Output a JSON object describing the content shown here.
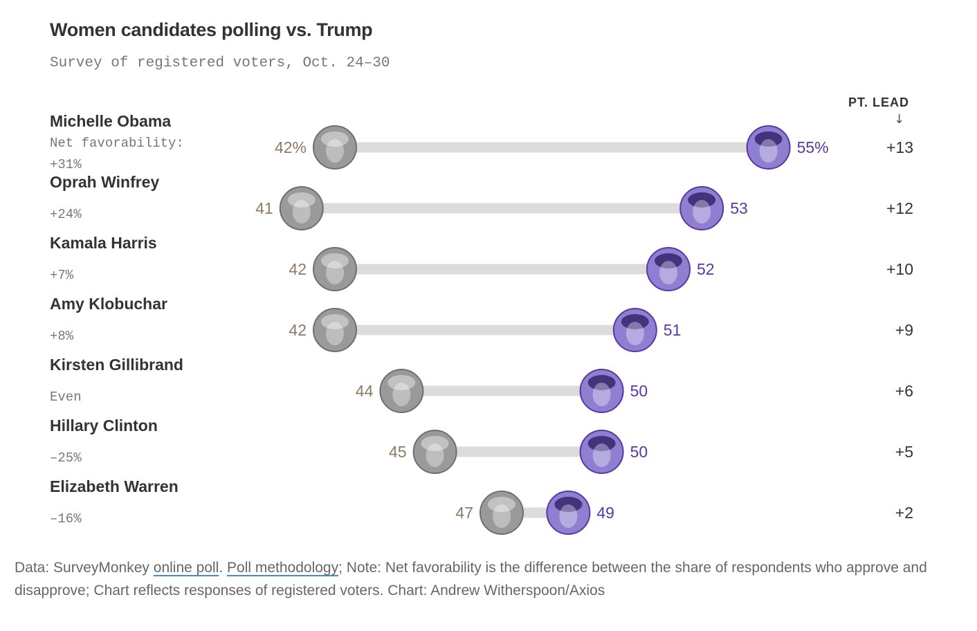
{
  "title": "Women candidates polling vs. Trump",
  "subtitle": "Survey of registered voters, Oct. 24–30",
  "lead_header": "PT. LEAD",
  "lead_arrow": "↓",
  "colors": {
    "trump": "#8a7a62",
    "candidate": "#5a36a6",
    "bar": "#dcdcdc",
    "trump_face": "#9a9a9a",
    "candidate_face": "#8f7fd0"
  },
  "chart_data": {
    "type": "dumbbell",
    "title": "Women candidates polling vs. Trump",
    "subtitle": "Survey of registered voters, Oct. 24–30",
    "x_unit": "%",
    "rows": [
      {
        "name": "Michelle Obama",
        "favorability_label": "Net favorability:",
        "favorability": "+31%",
        "trump": 42,
        "candidate": 55,
        "trump_label": "42%",
        "candidate_label": "55%",
        "lead": "+13"
      },
      {
        "name": "Oprah Winfrey",
        "favorability_label": "",
        "favorability": "+24%",
        "trump": 41,
        "candidate": 53,
        "trump_label": "41",
        "candidate_label": "53",
        "lead": "+12"
      },
      {
        "name": "Kamala Harris",
        "favorability_label": "",
        "favorability": "+7%",
        "trump": 42,
        "candidate": 52,
        "trump_label": "42",
        "candidate_label": "52",
        "lead": "+10"
      },
      {
        "name": "Amy Klobuchar",
        "favorability_label": "",
        "favorability": "+8%",
        "trump": 42,
        "candidate": 51,
        "trump_label": "42",
        "candidate_label": "51",
        "lead": "+9"
      },
      {
        "name": "Kirsten Gillibrand",
        "favorability_label": "",
        "favorability": "Even",
        "trump": 44,
        "candidate": 50,
        "trump_label": "44",
        "candidate_label": "50",
        "lead": "+6"
      },
      {
        "name": "Hillary Clinton",
        "favorability_label": "",
        "favorability": "–25%",
        "trump": 45,
        "candidate": 50,
        "trump_label": "45",
        "candidate_label": "50",
        "lead": "+5"
      },
      {
        "name": "Elizabeth Warren",
        "favorability_label": "",
        "favorability": "–16%",
        "trump": 47,
        "candidate": 49,
        "trump_label": "47",
        "candidate_label": "49",
        "lead": "+2"
      }
    ]
  },
  "footer": {
    "prefix": "Data: SurveyMonkey ",
    "link1": "online poll",
    "sep1": ". ",
    "link2": "Poll methodology",
    "rest": "; Note: Net favorability is the difference between the share of respondents who approve and disapprove; Chart reflects responses of registered voters. Chart: Andrew Witherspoon/Axios"
  }
}
